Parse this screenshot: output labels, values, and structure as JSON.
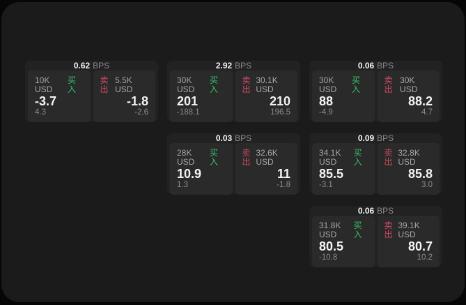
{
  "labels": {
    "buy": "买入",
    "sell": "卖出",
    "bps": "BPS"
  },
  "colors": {
    "buy_green": "#36c06a",
    "sell_red": "#cc4a5f",
    "window_bg": "#1b1b1b",
    "card_bg": "#222222",
    "panel_bg": "#2a2a2a"
  },
  "cards": [
    {
      "bps": "0.62",
      "buy": {
        "amount": "10K USD",
        "value": "-3.7",
        "delta": "4.3"
      },
      "sell": {
        "amount": "5.5K USD",
        "value": "-1.8",
        "delta": "-2.6"
      }
    },
    {
      "bps": "2.92",
      "buy": {
        "amount": "30K USD",
        "value": "201",
        "delta": "-188.1"
      },
      "sell": {
        "amount": "30.1K USD",
        "value": "210",
        "delta": "196.5"
      }
    },
    {
      "bps": "0.06",
      "buy": {
        "amount": "30K USD",
        "value": "88",
        "delta": "-4.9"
      },
      "sell": {
        "amount": "30K USD",
        "value": "88.2",
        "delta": "4.7"
      }
    },
    {
      "bps": "0.03",
      "buy": {
        "amount": "28K USD",
        "value": "10.9",
        "delta": "1.3"
      },
      "sell": {
        "amount": "32.6K USD",
        "value": "11",
        "delta": "-1.8"
      }
    },
    {
      "bps": "0.09",
      "buy": {
        "amount": "34.1K USD",
        "value": "85.5",
        "delta": "-3.1"
      },
      "sell": {
        "amount": "32.8K USD",
        "value": "85.8",
        "delta": "3.0"
      }
    },
    {
      "bps": "0.06",
      "buy": {
        "amount": "31.8K USD",
        "value": "80.5",
        "delta": "-10.8"
      },
      "sell": {
        "amount": "39.1K USD",
        "value": "80.7",
        "delta": "10.2"
      }
    }
  ]
}
